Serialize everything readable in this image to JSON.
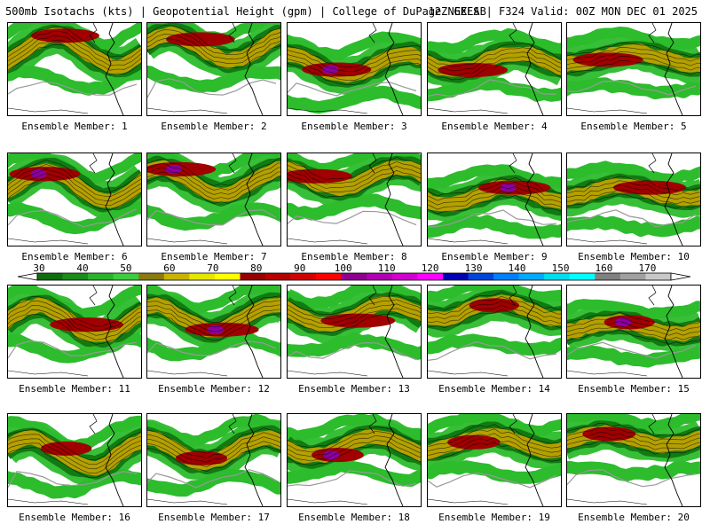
{
  "header": {
    "left": "500mb Isotachs (kts) | Geopotential Height (gpm) | College of DuPage NEXLAB",
    "right": "12Z GEFS | F324 Valid: 00Z MON DEC 01 2025"
  },
  "members": [
    {
      "label": "Ensemble Member: 1"
    },
    {
      "label": "Ensemble Member: 2"
    },
    {
      "label": "Ensemble Member: 3"
    },
    {
      "label": "Ensemble Member: 4"
    },
    {
      "label": "Ensemble Member: 5"
    },
    {
      "label": "Ensemble Member: 6"
    },
    {
      "label": "Ensemble Member: 7"
    },
    {
      "label": "Ensemble Member: 8"
    },
    {
      "label": "Ensemble Member: 9"
    },
    {
      "label": "Ensemble Member: 10"
    },
    {
      "label": "Ensemble Member: 11"
    },
    {
      "label": "Ensemble Member: 12"
    },
    {
      "label": "Ensemble Member: 13"
    },
    {
      "label": "Ensemble Member: 14"
    },
    {
      "label": "Ensemble Member: 15"
    },
    {
      "label": "Ensemble Member: 16"
    },
    {
      "label": "Ensemble Member: 17"
    },
    {
      "label": "Ensemble Member: 18"
    },
    {
      "label": "Ensemble Member: 19"
    },
    {
      "label": "Ensemble Member: 20"
    }
  ],
  "legend": {
    "labels": [
      "30",
      "40",
      "50",
      "60",
      "70",
      "80",
      "90",
      "100",
      "110",
      "120",
      "130",
      "140",
      "150",
      "160",
      "170"
    ],
    "colors": [
      "#0e6e0e",
      "#1a8c1a",
      "#28b428",
      "#3ccc3c",
      "#8a7a10",
      "#c8b400",
      "#e6e600",
      "#ffff00",
      "#960000",
      "#b40000",
      "#d20000",
      "#ff0000",
      "#900090",
      "#b000b0",
      "#d000d0",
      "#ff00ff",
      "#0000b4",
      "#0044dc",
      "#0080ff",
      "#00aaff",
      "#00ddee",
      "#00ffff",
      "#808080",
      "#a0a0a0",
      "#c8c8c8"
    ]
  },
  "colors": {
    "green_dark": "#127a12",
    "green": "#2cbc2c",
    "gold": "#b4a000",
    "yellow": "#e8e000",
    "red": "#a00000",
    "purple": "#8a00a0",
    "height_contour": "#999999",
    "coast": "#000000"
  }
}
